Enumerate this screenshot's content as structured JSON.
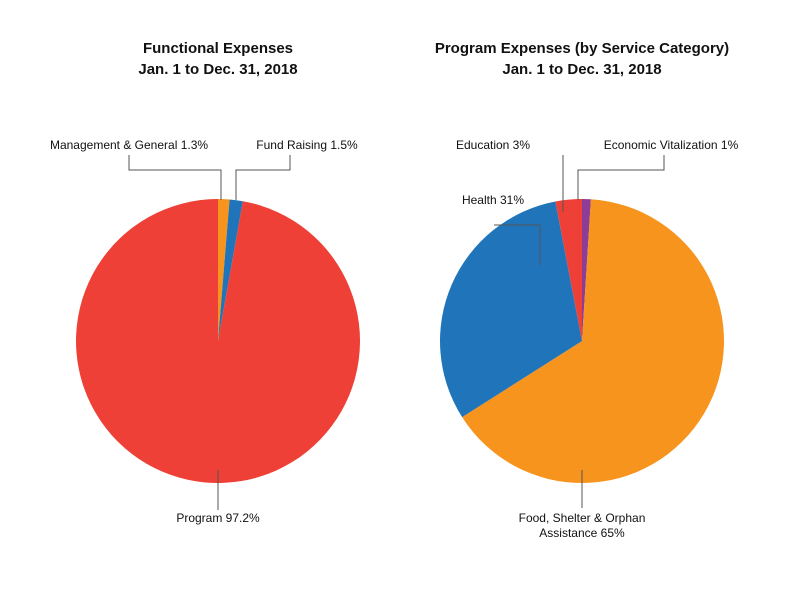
{
  "chart_data": [
    {
      "type": "pie",
      "title": "Functional Expenses",
      "subtitle": "Jan. 1 to Dec. 31, 2018",
      "slices": [
        {
          "label": "Management & General 1.3%",
          "value": 1.3,
          "color": "#F7941D"
        },
        {
          "label": "Fund Raising 1.5%",
          "value": 1.5,
          "color": "#1F74BA"
        },
        {
          "label": "Program 97.2%",
          "value": 97.2,
          "color": "#EE4036"
        }
      ]
    },
    {
      "type": "pie",
      "title": "Program Expenses (by Service Category)",
      "subtitle": "Jan. 1 to Dec. 31, 2018",
      "slices": [
        {
          "label": "Economic Vitalization 1%",
          "value": 1,
          "color": "#8E3D97"
        },
        {
          "label": "Food, Shelter & Orphan Assistance 65%",
          "label_lines": [
            "Food, Shelter & Orphan",
            "Assistance 65%"
          ],
          "value": 65,
          "color": "#F7941D"
        },
        {
          "label": "Health 31%",
          "value": 31,
          "color": "#1F74BA"
        },
        {
          "label": "Education 3%",
          "value": 3,
          "color": "#EE4036"
        }
      ]
    }
  ]
}
